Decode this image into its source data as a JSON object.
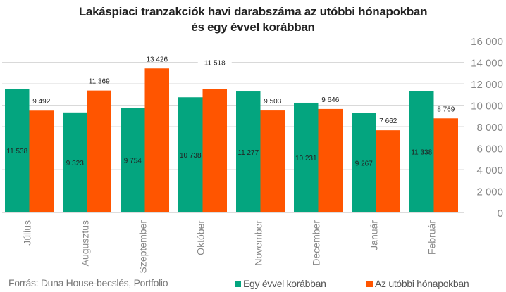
{
  "chart_data": {
    "type": "bar",
    "title_line1": "Lakáspiaci tranzakciók havi darabszáma az utóbbi hónapokban",
    "title_line2": "és egy évvel korábban",
    "categories": [
      "Július",
      "Augusztus",
      "Szeptember",
      "Október",
      "November",
      "December",
      "Január",
      "Február"
    ],
    "series": [
      {
        "name": "Egy évvel korábban",
        "color": "#04A57F",
        "values": [
          11538,
          9323,
          9754,
          10738,
          11277,
          10231,
          9267,
          11338
        ],
        "labels": [
          "11 538",
          "9 323",
          "9 754",
          "10 738",
          "11 277",
          "10 231",
          "9 267",
          "11 338"
        ]
      },
      {
        "name": "Az utóbbi hónapokban",
        "color": "#FF5500",
        "values": [
          9492,
          11369,
          13426,
          11518,
          9503,
          9646,
          7662,
          8769
        ],
        "labels": [
          "9 492",
          "11 369",
          "13 426",
          "11 518",
          "9 503",
          "9 646",
          "7 662",
          "8 769"
        ]
      }
    ],
    "yticks": [
      0,
      2000,
      4000,
      6000,
      8000,
      10000,
      12000,
      14000,
      16000
    ],
    "ytick_labels": [
      "0",
      "2 000",
      "4 000",
      "6 000",
      "8 000",
      "10 000",
      "12 000",
      "14 000",
      "16 000"
    ],
    "ylim": [
      0,
      16000
    ],
    "grid": true,
    "legend_position": "bottom-right"
  },
  "source": "Forrás: Duna House-becslés, Portfolio"
}
